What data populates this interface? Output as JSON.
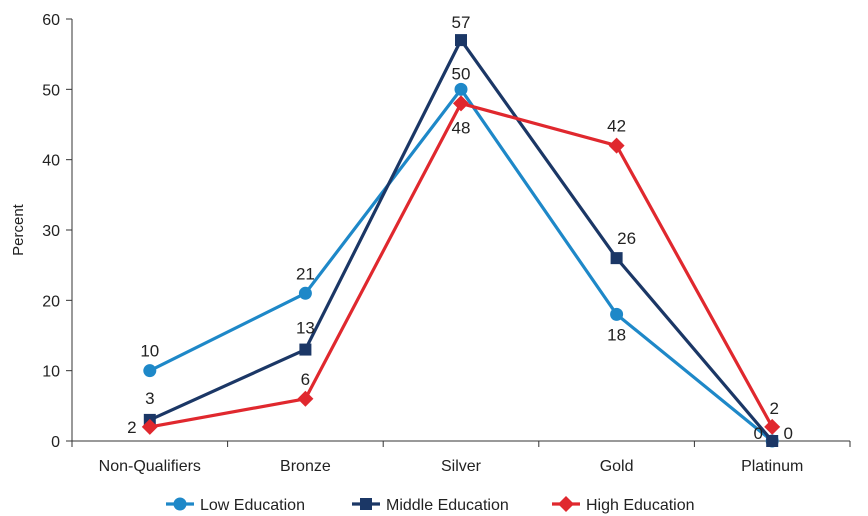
{
  "chart_data": {
    "type": "line",
    "categories": [
      "Non-Qualifiers",
      "Bronze",
      "Silver",
      "Gold",
      "Platinum"
    ],
    "ylabel": "Percent",
    "ylim": [
      0,
      60
    ],
    "yticks": [
      0,
      10,
      20,
      30,
      40,
      50,
      60
    ],
    "grid": false,
    "legend_position": "bottom",
    "series": [
      {
        "name": "Low Education",
        "color": "#1e88c8",
        "marker": "circle",
        "values": [
          10,
          21,
          50,
          18,
          0
        ]
      },
      {
        "name": "Middle Education",
        "color": "#1b3766",
        "marker": "square",
        "values": [
          3,
          13,
          57,
          26,
          0
        ]
      },
      {
        "name": "High Education",
        "color": "#e0282e",
        "marker": "diamond",
        "values": [
          2,
          6,
          48,
          42,
          2
        ]
      }
    ]
  }
}
